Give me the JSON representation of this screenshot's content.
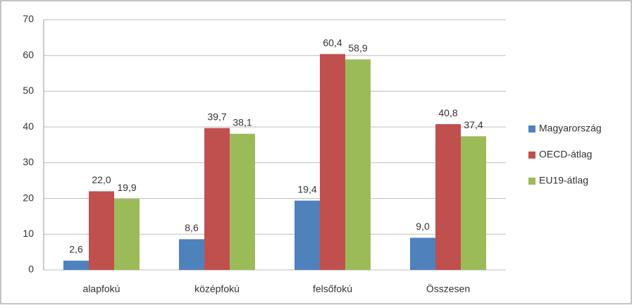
{
  "chart_data": {
    "type": "bar",
    "categories": [
      "alapfokú",
      "középfokú",
      "felsőfokú",
      "Összesen"
    ],
    "series": [
      {
        "name": "Magyarország",
        "color": "#4f81bd",
        "values": [
          2.6,
          8.6,
          19.4,
          9.0
        ],
        "value_labels": [
          "2,6",
          "8,6",
          "19,4",
          "9,0"
        ]
      },
      {
        "name": "OECD-átlag",
        "color": "#c0504d",
        "values": [
          22.0,
          39.7,
          60.4,
          40.8
        ],
        "value_labels": [
          "22,0",
          "39,7",
          "60,4",
          "40,8"
        ]
      },
      {
        "name": "EU19-átlag",
        "color": "#9bbb59",
        "values": [
          19.9,
          38.1,
          58.9,
          37.4
        ],
        "value_labels": [
          "19,9",
          "38,1",
          "58,9",
          "37,4"
        ]
      }
    ],
    "ylim": [
      0,
      70
    ],
    "yticks": [
      0,
      10,
      20,
      30,
      40,
      50,
      60,
      70
    ],
    "grid": true,
    "legend": "right"
  }
}
